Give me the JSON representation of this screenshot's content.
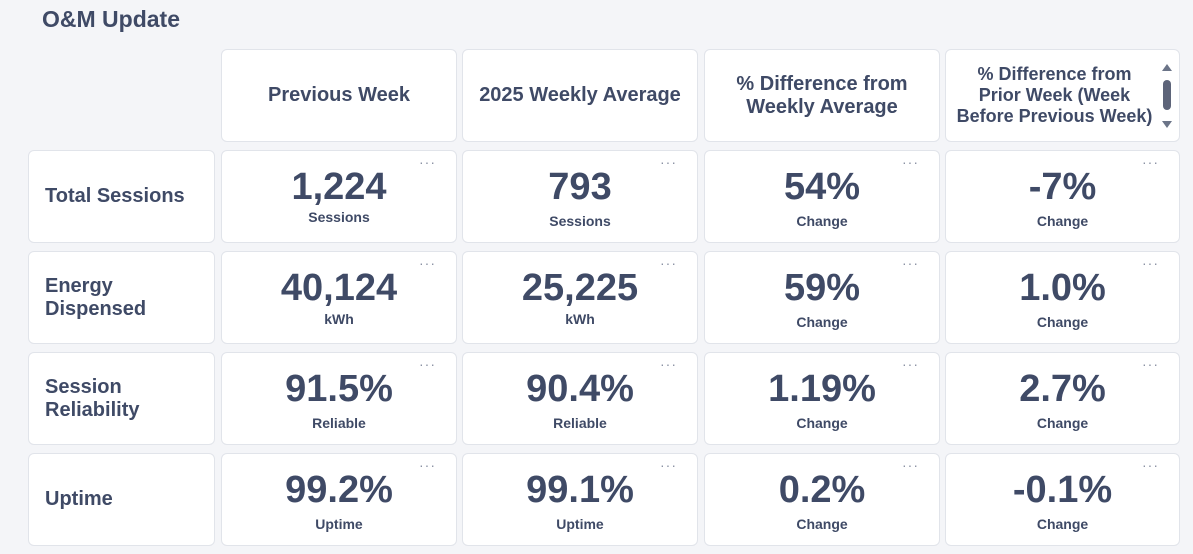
{
  "title": "O&M Update",
  "columns": [
    "Previous Week",
    "2025 Weekly Average",
    "% Difference from Weekly Average",
    "% Difference from Prior Week (Week Before Previous Week)"
  ],
  "rows": [
    {
      "label": "Total Sessions",
      "cells": [
        {
          "value": "1,224",
          "unit": "Sessions"
        },
        {
          "value": "793",
          "unit": "Sessions"
        },
        {
          "value": "54%",
          "unit": "Change"
        },
        {
          "value": "-7%",
          "unit": "Change"
        }
      ]
    },
    {
      "label": "Energy Dispensed",
      "cells": [
        {
          "value": "40,124",
          "unit": "kWh"
        },
        {
          "value": "25,225",
          "unit": "kWh"
        },
        {
          "value": "59%",
          "unit": "Change"
        },
        {
          "value": "1.0%",
          "unit": "Change"
        }
      ]
    },
    {
      "label": "Session Reliability",
      "cells": [
        {
          "value": "91.5%",
          "unit": "Reliable"
        },
        {
          "value": "90.4%",
          "unit": "Reliable"
        },
        {
          "value": "1.19%",
          "unit": "Change"
        },
        {
          "value": "2.7%",
          "unit": "Change"
        }
      ]
    },
    {
      "label": "Uptime",
      "cells": [
        {
          "value": "99.2%",
          "unit": "Uptime"
        },
        {
          "value": "99.1%",
          "unit": "Uptime"
        },
        {
          "value": "0.2%",
          "unit": "Change"
        },
        {
          "value": "-0.1%",
          "unit": "Change"
        }
      ]
    }
  ],
  "icons": {
    "card_menu": "more-horizontal-icon",
    "scroll_up": "scroll-up-arrow-icon",
    "scroll_down": "scroll-down-arrow-icon"
  },
  "colors": {
    "text": "#3f4a66",
    "card_background": "#ffffff",
    "page_background": "#f4f5f8",
    "border": "#e1e4ea",
    "menu_icon": "#8a91a3"
  },
  "menu_glyph": "···"
}
